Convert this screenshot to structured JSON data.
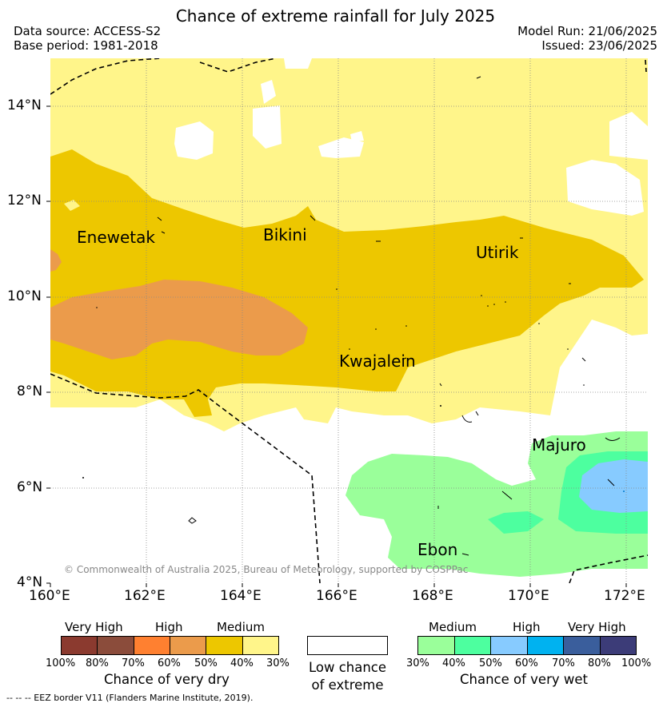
{
  "header": {
    "title": "Chance of extreme rainfall for July 2025",
    "data_source": "Data source: ACCESS-S2",
    "base_period": "Base period: 1981-2018",
    "model_run": "Model Run: 21/06/2025",
    "issued": "Issued: 23/06/2025"
  },
  "map": {
    "lon_labels": [
      "160°E",
      "162°E",
      "164°E",
      "166°E",
      "168°E",
      "170°E",
      "172°E"
    ],
    "lat_labels": [
      "14°N",
      "12°N",
      "10°N",
      "8°N",
      "6°N",
      "4°N"
    ],
    "places": {
      "enewetak": "Enewetak",
      "bikini": "Bikini",
      "utirik": "Utirik",
      "kwajalein": "Kwajalein",
      "majuro": "Majuro",
      "ebon": "Ebon"
    },
    "copyright": "© Commonwealth of Australia 2025, Bureau of Meteorology, supported by COSPPac",
    "colors": {
      "dry_80_100": "#8b3a2f",
      "dry_70_80": "#8b4c3b",
      "dry_60_70": "#ff8030",
      "dry_50_60": "#eb9b4b",
      "dry_40_50": "#edc700",
      "dry_30_40": "#fff58a",
      "wet_30_40": "#9aff9a",
      "wet_40_50": "#4dff9f",
      "wet_50_60": "#87cbff",
      "wet_60_70": "#00b2f0",
      "wet_70_80": "#3a5e9c",
      "wet_80_100": "#3c3c78"
    }
  },
  "legend": {
    "dry": {
      "categories": [
        "Very High",
        "High",
        "Medium"
      ],
      "ticks": [
        "100%",
        "80%",
        "70%",
        "60%",
        "50%",
        "40%",
        "30%"
      ],
      "title": "Chance of very dry"
    },
    "low": {
      "line1": "Low chance",
      "line2": "of extreme"
    },
    "wet": {
      "categories": [
        "Medium",
        "High",
        "Very High"
      ],
      "ticks": [
        "30%",
        "40%",
        "50%",
        "60%",
        "70%",
        "80%",
        "100%"
      ],
      "title": "Chance of very wet"
    },
    "footnote": "-- -- -- EEZ border V11 (Flanders Marine Institute, 2019)."
  }
}
